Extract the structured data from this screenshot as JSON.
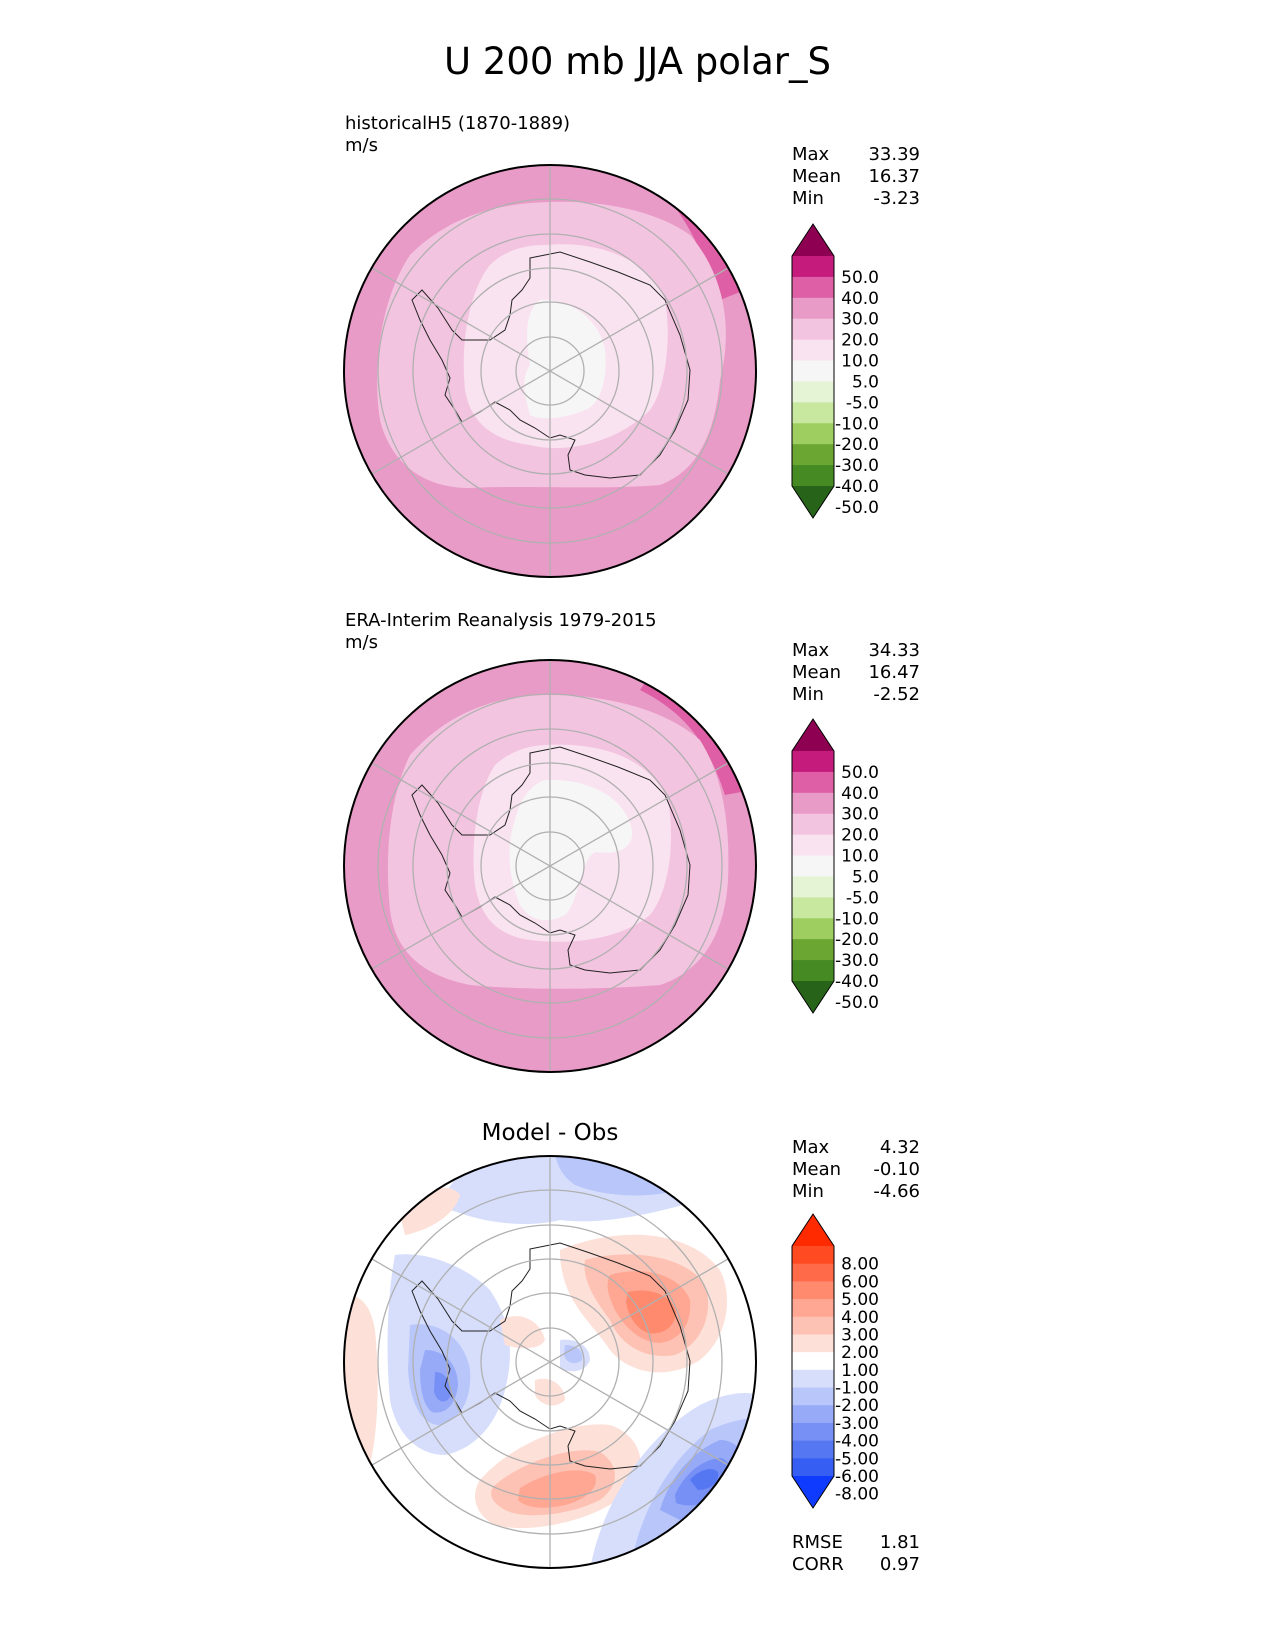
{
  "title": "U 200 mb JJA polar_S",
  "panels": [
    {
      "id": "model",
      "label": "historicalH5 (1870-1889)",
      "units": "m/s",
      "stats": [
        {
          "k": "Max",
          "v": "33.39"
        },
        {
          "k": "Mean",
          "v": "16.37"
        },
        {
          "k": "Min",
          "v": "-3.23"
        }
      ]
    },
    {
      "id": "obs",
      "label": "ERA-Interim Reanalysis 1979-2015",
      "units": "m/s",
      "stats": [
        {
          "k": "Max",
          "v": "34.33"
        },
        {
          "k": "Mean",
          "v": "16.47"
        },
        {
          "k": "Min",
          "v": "-2.52"
        }
      ]
    },
    {
      "id": "diff",
      "heading": "Model - Obs",
      "stats": [
        {
          "k": "Max",
          "v": "4.32"
        },
        {
          "k": "Mean",
          "v": "-0.10"
        },
        {
          "k": "Min",
          "v": "-4.66"
        }
      ],
      "metrics": [
        {
          "k": "RMSE",
          "v": "1.81"
        },
        {
          "k": "CORR",
          "v": "0.97"
        }
      ]
    }
  ],
  "colorbars": {
    "field": {
      "ticks": [
        "50.0",
        "40.0",
        "30.0",
        "20.0",
        "10.0",
        "5.0",
        "-5.0",
        "-10.0",
        "-20.0",
        "-30.0",
        "-40.0",
        "-50.0"
      ],
      "colors": [
        "#8e0152",
        "#c51b7d",
        "#de5fa5",
        "#e99bc8",
        "#f3c4e0",
        "#fae3f0",
        "#f6f6f6",
        "#e6f4d6",
        "#c8e8a0",
        "#9dce5f",
        "#6ba532",
        "#458a23",
        "#276419"
      ]
    },
    "diff": {
      "ticks": [
        "8.00",
        "6.00",
        "5.00",
        "4.00",
        "3.00",
        "2.00",
        "1.00",
        "-1.00",
        "-2.00",
        "-3.00",
        "-4.00",
        "-5.00",
        "-6.00",
        "-8.00"
      ],
      "colors": [
        "#ff2a00",
        "#ff4a22",
        "#ff6a48",
        "#ff8a6e",
        "#ffa793",
        "#fdc2b4",
        "#fde0d8",
        "#ffffff",
        "#d6defc",
        "#b8c6fa",
        "#97aaf7",
        "#7690f5",
        "#5677f2",
        "#365ef2",
        "#0f3bff"
      ]
    }
  },
  "regions": {
    "field": [
      {
        "level": "30.0",
        "color": "#e99bc8"
      },
      {
        "level": "40.0",
        "color": "#de5fa5"
      },
      {
        "level": "20.0",
        "color": "#f3c4e0"
      },
      {
        "level": "10.0",
        "color": "#fae3f0"
      },
      {
        "level": "5.0",
        "color": "#f6f6f6"
      }
    ],
    "diff_colors": {
      "white": "#ffffff"
    }
  }
}
